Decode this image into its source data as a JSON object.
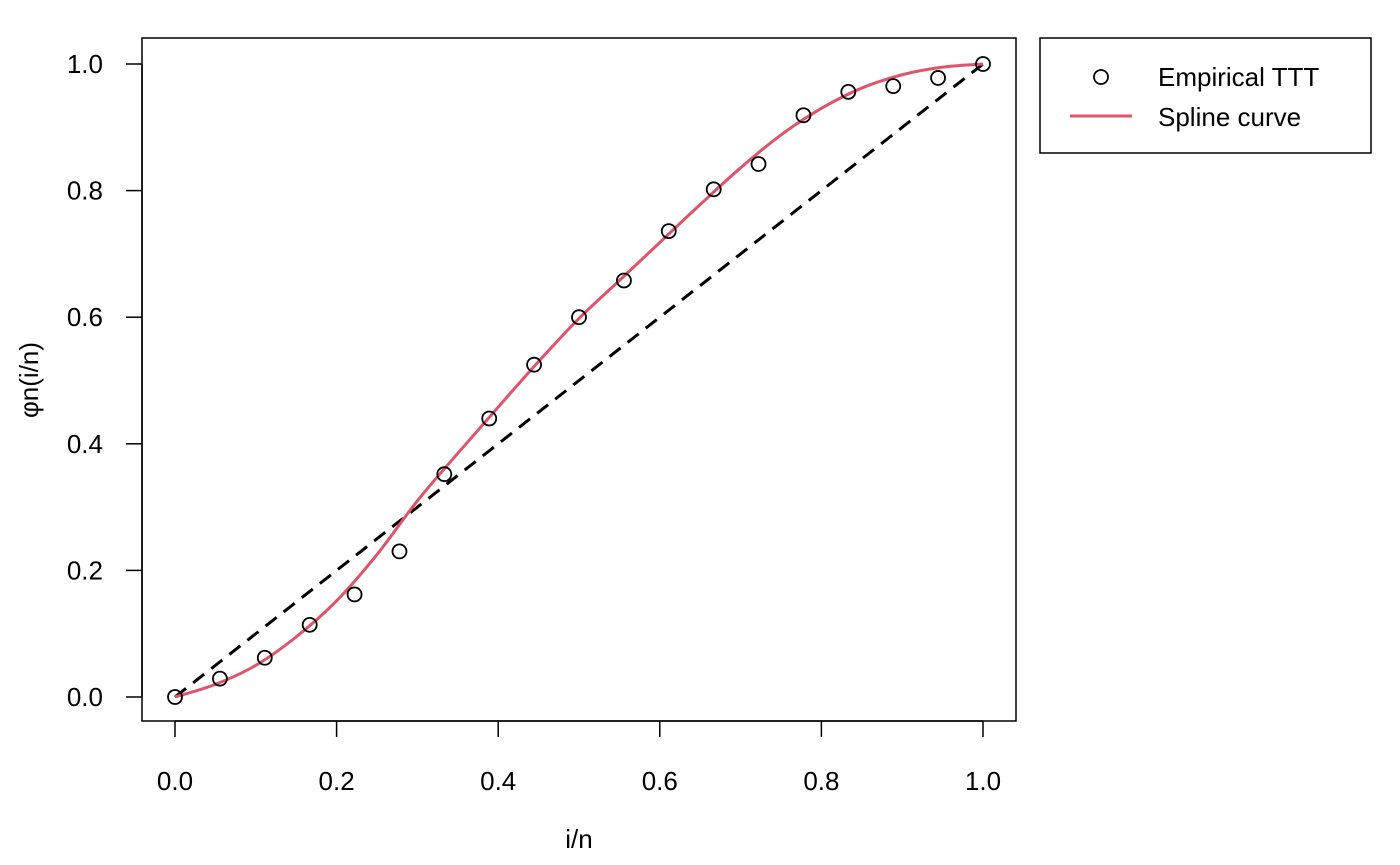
{
  "chart_data": {
    "type": "line",
    "title": "",
    "xlabel": "i/n",
    "ylabel": "φn(i/n)",
    "xlim": [
      0,
      1
    ],
    "ylim": [
      0,
      1
    ],
    "xticks": [
      "0.0",
      "0.2",
      "0.4",
      "0.6",
      "0.8",
      "1.0"
    ],
    "yticks": [
      "0.0",
      "0.2",
      "0.4",
      "0.6",
      "0.8",
      "1.0"
    ],
    "grid": false,
    "legend_position": "outside-top-right",
    "series": [
      {
        "name": "Empirical TTT",
        "kind": "points",
        "marker": "open-circle",
        "color": "#000000",
        "x": [
          0.0,
          0.0556,
          0.1111,
          0.1667,
          0.2222,
          0.2778,
          0.3333,
          0.3889,
          0.4444,
          0.5,
          0.5556,
          0.6111,
          0.6667,
          0.7222,
          0.7778,
          0.8333,
          0.8889,
          0.9444,
          1.0
        ],
        "y": [
          0.0,
          0.029,
          0.062,
          0.114,
          0.162,
          0.23,
          0.352,
          0.44,
          0.525,
          0.6,
          0.658,
          0.736,
          0.802,
          0.842,
          0.919,
          0.956,
          0.965,
          0.978,
          1.0
        ]
      },
      {
        "name": "Spline curve",
        "kind": "line",
        "color": "#DF536B",
        "x": [
          0.0,
          0.05,
          0.1,
          0.15,
          0.2,
          0.25,
          0.3,
          0.35,
          0.4,
          0.45,
          0.5,
          0.55,
          0.6,
          0.65,
          0.7,
          0.75,
          0.8,
          0.85,
          0.9,
          0.95,
          1.0
        ],
        "y": [
          0.0,
          0.02,
          0.05,
          0.095,
          0.152,
          0.225,
          0.31,
          0.385,
          0.458,
          0.53,
          0.598,
          0.658,
          0.718,
          0.778,
          0.836,
          0.888,
          0.93,
          0.962,
          0.983,
          0.995,
          1.0
        ]
      },
      {
        "name": "",
        "kind": "dashed-line",
        "color": "#000000",
        "x": [
          0.0,
          1.0
        ],
        "y": [
          0.0,
          1.0
        ]
      }
    ]
  }
}
